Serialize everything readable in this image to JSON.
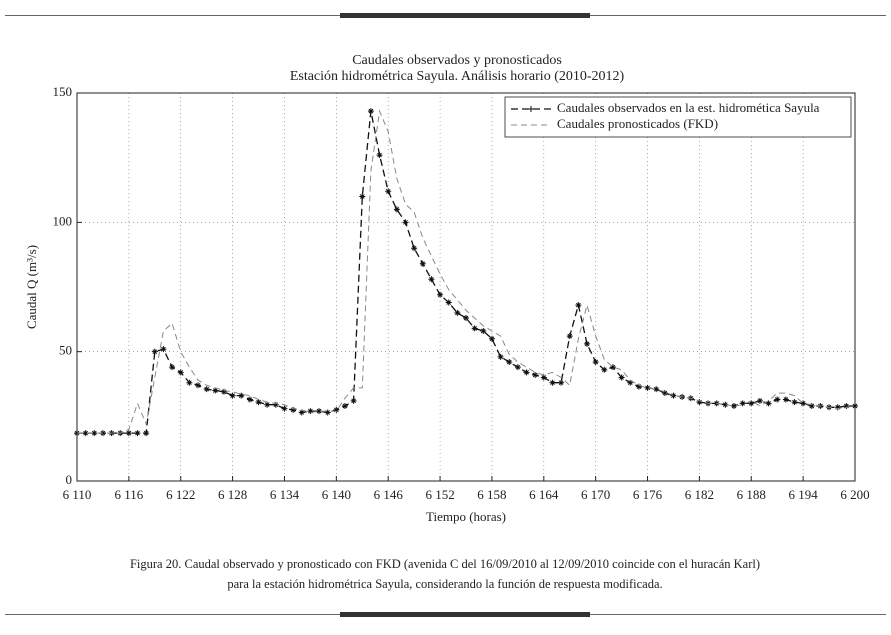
{
  "chart_data": {
    "type": "line",
    "title": "Caudales observados y pronosticados",
    "subtitle": "Estación hidrométrica Sayula. Análisis horario (2010-2012)",
    "xlabel": "Tiempo (horas)",
    "ylabel": "Caudal Q (m³/s)",
    "x": [
      6110,
      6111,
      6112,
      6113,
      6114,
      6115,
      6116,
      6117,
      6118,
      6119,
      6120,
      6121,
      6122,
      6123,
      6124,
      6125,
      6126,
      6127,
      6128,
      6129,
      6130,
      6131,
      6132,
      6133,
      6134,
      6135,
      6136,
      6137,
      6138,
      6139,
      6140,
      6141,
      6142,
      6143,
      6144,
      6145,
      6146,
      6147,
      6148,
      6149,
      6150,
      6151,
      6152,
      6153,
      6154,
      6155,
      6156,
      6157,
      6158,
      6159,
      6160,
      6161,
      6162,
      6163,
      6164,
      6165,
      6166,
      6167,
      6168,
      6169,
      6170,
      6171,
      6172,
      6173,
      6174,
      6175,
      6176,
      6177,
      6178,
      6179,
      6180,
      6181,
      6182,
      6183,
      6184,
      6185,
      6186,
      6187,
      6188,
      6189,
      6190,
      6191,
      6192,
      6193,
      6194,
      6195,
      6196,
      6197,
      6198,
      6199,
      6200
    ],
    "series": [
      {
        "name": "Caudales observados en la est. hidromética Sayula",
        "color": "#111111",
        "values": [
          18.5,
          18.5,
          18.5,
          18.5,
          18.5,
          18.5,
          18.5,
          18.5,
          18.5,
          50,
          51,
          44,
          42,
          38,
          37,
          35.5,
          35,
          34.5,
          33,
          33,
          31.5,
          30.5,
          29.5,
          29.5,
          28,
          27.5,
          26.5,
          27,
          27,
          26.5,
          27.5,
          29,
          31,
          110,
          143,
          126,
          112,
          105,
          100,
          90,
          84,
          78,
          72,
          69,
          65,
          63,
          59,
          58,
          55,
          48,
          46,
          44,
          42,
          41,
          40,
          38,
          38,
          56,
          68,
          53,
          46,
          43,
          44,
          40,
          38,
          36.5,
          36,
          35.5,
          34,
          33,
          32.5,
          32,
          30.5,
          30,
          30,
          29.5,
          29,
          30,
          30,
          31,
          30,
          31.5,
          31.5,
          30.5,
          30,
          29,
          29,
          28.5,
          28.5,
          29,
          29
        ]
      },
      {
        "name": "Caudales pronosticados (FKD)",
        "color": "#888888",
        "values": [
          18.5,
          18.5,
          18.5,
          18.5,
          18.5,
          18.5,
          20,
          30,
          22,
          40,
          58,
          61,
          50,
          44,
          39,
          37,
          36,
          35,
          34.5,
          33.5,
          33,
          31.5,
          30.5,
          30,
          29.5,
          28,
          27.5,
          26.5,
          27,
          27,
          27,
          32,
          36,
          36,
          120,
          143,
          135,
          117,
          107,
          104,
          94,
          87,
          80,
          74,
          70,
          66,
          63,
          60,
          58,
          56,
          49,
          46,
          44,
          42,
          41,
          42,
          40,
          37,
          55,
          68,
          56,
          47,
          44,
          43,
          39,
          37,
          36,
          35.5,
          34.5,
          33,
          32.5,
          32,
          31,
          30,
          30,
          29.5,
          29,
          29.5,
          31,
          29,
          31,
          34,
          34,
          33,
          30,
          29.5,
          29,
          28.5,
          28,
          28.5,
          29
        ]
      }
    ],
    "xlim": [
      6110,
      6200
    ],
    "xticks": [
      {
        "value": 6110,
        "label": "6 110"
      },
      {
        "value": 6116,
        "label": "6 116"
      },
      {
        "value": 6122,
        "label": "6 122"
      },
      {
        "value": 6128,
        "label": "6 128"
      },
      {
        "value": 6134,
        "label": "6 134"
      },
      {
        "value": 6140,
        "label": "6 140"
      },
      {
        "value": 6146,
        "label": "6 146"
      },
      {
        "value": 6152,
        "label": "6 152"
      },
      {
        "value": 6158,
        "label": "6 158"
      },
      {
        "value": 6164,
        "label": "6 164"
      },
      {
        "value": 6170,
        "label": "6 170"
      },
      {
        "value": 6176,
        "label": "6 176"
      },
      {
        "value": 6182,
        "label": "6 182"
      },
      {
        "value": 6188,
        "label": "6 188"
      },
      {
        "value": 6194,
        "label": "6 194"
      },
      {
        "value": 6200,
        "label": "6 200"
      }
    ],
    "ylim": [
      0,
      150
    ],
    "yticks": [
      0,
      50,
      100,
      150
    ],
    "grid": true,
    "legend": "upper right"
  },
  "caption": [
    "Figura 20. Caudal observado y pronosticado con FKD (avenida C del 16/09/2010 al 12/09/2010 coincide con el huracán Karl)",
    "para la estación hidrométrica Sayula, considerando la función de respuesta modificada."
  ]
}
